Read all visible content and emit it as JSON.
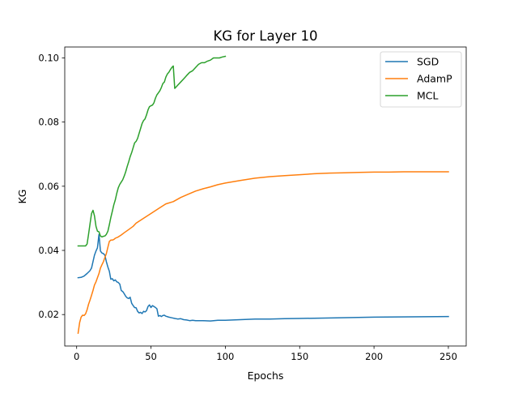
{
  "chart_data": {
    "type": "line",
    "title": "KG for Layer 10",
    "xlabel": "Epochs",
    "ylabel": "KG",
    "xlim": [
      -8,
      262
    ],
    "ylim": [
      0.0102,
      0.1034
    ],
    "xticks": [
      0,
      50,
      100,
      150,
      200,
      250
    ],
    "yticks": [
      0.02,
      0.04,
      0.06,
      0.08,
      0.1
    ],
    "ytick_labels": [
      "0.02",
      "0.04",
      "0.06",
      "0.08",
      "0.10"
    ],
    "grid": false,
    "legend_position": "upper-right",
    "series": [
      {
        "name": "SGD",
        "color": "#1f77b4",
        "x": [
          1,
          3,
          5,
          7,
          9,
          10,
          11,
          12,
          13,
          14,
          15,
          16,
          17,
          18,
          19,
          20,
          21,
          22,
          23,
          24,
          25,
          26,
          27,
          28,
          29,
          30,
          31,
          32,
          33,
          34,
          35,
          36,
          37,
          38,
          39,
          40,
          41,
          42,
          43,
          44,
          45,
          46,
          47,
          48,
          49,
          50,
          51,
          52,
          53,
          54,
          55,
          56,
          57,
          58,
          59,
          60,
          62,
          64,
          66,
          68,
          70,
          72,
          74,
          76,
          78,
          80,
          85,
          90,
          95,
          100,
          110,
          120,
          130,
          140,
          150,
          175,
          200,
          225,
          250
        ],
        "y": [
          0.0315,
          0.0316,
          0.032,
          0.0328,
          0.0337,
          0.0345,
          0.0365,
          0.0385,
          0.0398,
          0.0408,
          0.045,
          0.0398,
          0.0392,
          0.039,
          0.0385,
          0.0365,
          0.0348,
          0.0335,
          0.031,
          0.0312,
          0.0305,
          0.0308,
          0.0302,
          0.03,
          0.0295,
          0.0275,
          0.0272,
          0.0265,
          0.0257,
          0.0252,
          0.025,
          0.0254,
          0.0235,
          0.0228,
          0.0222,
          0.0221,
          0.021,
          0.0205,
          0.0207,
          0.0203,
          0.021,
          0.0208,
          0.0212,
          0.0225,
          0.023,
          0.0222,
          0.0228,
          0.0225,
          0.0222,
          0.0218,
          0.0195,
          0.0197,
          0.0194,
          0.0197,
          0.0198,
          0.0195,
          0.0192,
          0.019,
          0.0188,
          0.0186,
          0.0187,
          0.0184,
          0.0183,
          0.0181,
          0.0182,
          0.0181,
          0.0181,
          0.018,
          0.0182,
          0.0182,
          0.0184,
          0.0186,
          0.0186,
          0.0187,
          0.0188,
          0.019,
          0.0192,
          0.0193,
          0.0194
        ]
      },
      {
        "name": "AdamP",
        "color": "#ff7f0e",
        "x": [
          1,
          2,
          3,
          4,
          5,
          6,
          7,
          8,
          9,
          10,
          11,
          12,
          13,
          14,
          15,
          16,
          17,
          18,
          19,
          20,
          21,
          22,
          23,
          24,
          25,
          26,
          28,
          30,
          32,
          35,
          38,
          40,
          45,
          50,
          55,
          60,
          65,
          70,
          75,
          80,
          85,
          90,
          95,
          100,
          110,
          120,
          130,
          140,
          150,
          160,
          170,
          180,
          190,
          200,
          210,
          220,
          230,
          240,
          250
        ],
        "y": [
          0.0142,
          0.0175,
          0.0192,
          0.0198,
          0.0197,
          0.0202,
          0.0215,
          0.0232,
          0.0245,
          0.026,
          0.0275,
          0.0292,
          0.0302,
          0.0315,
          0.0328,
          0.0345,
          0.0355,
          0.0365,
          0.0378,
          0.039,
          0.041,
          0.0428,
          0.0432,
          0.0432,
          0.0434,
          0.0438,
          0.0442,
          0.0448,
          0.0455,
          0.0465,
          0.0475,
          0.0485,
          0.05,
          0.0515,
          0.053,
          0.0545,
          0.0552,
          0.0565,
          0.0575,
          0.0585,
          0.0592,
          0.0598,
          0.0605,
          0.061,
          0.0618,
          0.0625,
          0.063,
          0.0633,
          0.0636,
          0.0639,
          0.0641,
          0.0642,
          0.0643,
          0.0644,
          0.0644,
          0.0645,
          0.0645,
          0.0645,
          0.0645
        ]
      },
      {
        "name": "MCL",
        "color": "#2ca02c",
        "x": [
          1,
          2,
          3,
          4,
          5,
          6,
          7,
          8,
          9,
          10,
          11,
          12,
          13,
          14,
          15,
          16,
          17,
          18,
          19,
          20,
          21,
          22,
          23,
          24,
          25,
          26,
          27,
          28,
          29,
          30,
          31,
          32,
          33,
          34,
          35,
          36,
          37,
          38,
          39,
          40,
          41,
          42,
          43,
          44,
          45,
          46,
          47,
          48,
          49,
          50,
          51,
          52,
          53,
          54,
          55,
          56,
          57,
          58,
          59,
          60,
          61,
          62,
          63,
          64,
          65,
          66,
          67,
          68,
          70,
          72,
          74,
          76,
          78,
          80,
          82,
          84,
          86,
          88,
          90,
          92,
          94,
          96,
          98,
          100
        ],
        "y": [
          0.0414,
          0.0414,
          0.0414,
          0.0414,
          0.0414,
          0.0414,
          0.042,
          0.045,
          0.0482,
          0.0515,
          0.0525,
          0.0508,
          0.0475,
          0.046,
          0.0458,
          0.0445,
          0.0442,
          0.0444,
          0.0445,
          0.045,
          0.046,
          0.048,
          0.0502,
          0.0522,
          0.0542,
          0.0558,
          0.0578,
          0.0595,
          0.0606,
          0.0613,
          0.062,
          0.0632,
          0.0645,
          0.0662,
          0.0676,
          0.0692,
          0.0705,
          0.072,
          0.0735,
          0.074,
          0.0749,
          0.0765,
          0.078,
          0.0795,
          0.0805,
          0.081,
          0.0822,
          0.0838,
          0.0848,
          0.0851,
          0.0853,
          0.086,
          0.0875,
          0.0885,
          0.0891,
          0.0898,
          0.0908,
          0.092,
          0.0925,
          0.094,
          0.095,
          0.0955,
          0.0963,
          0.097,
          0.0975,
          0.0905,
          0.091,
          0.0915,
          0.0925,
          0.0935,
          0.0945,
          0.0955,
          0.096,
          0.097,
          0.098,
          0.0985,
          0.0985,
          0.099,
          0.0993,
          0.1,
          0.1,
          0.1,
          0.1003,
          0.1005
        ]
      }
    ]
  }
}
